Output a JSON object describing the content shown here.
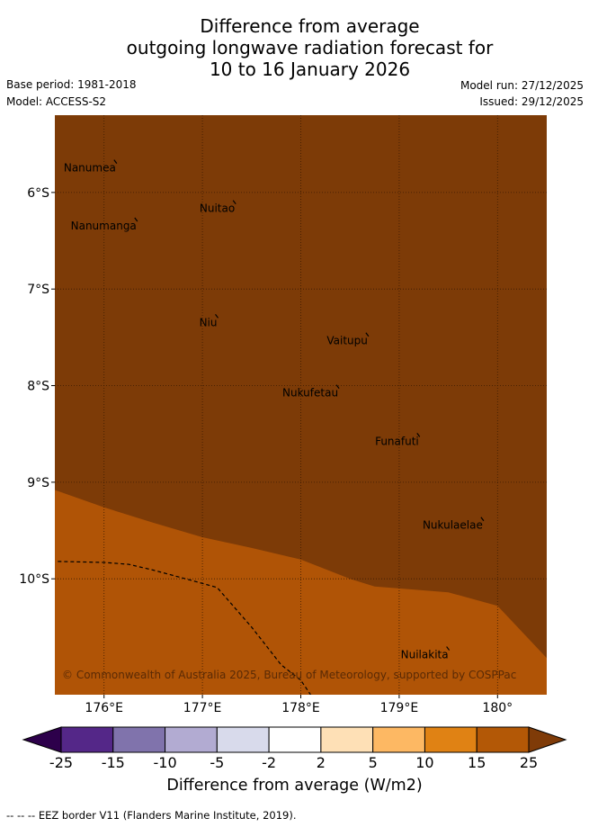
{
  "title": {
    "line1": "Difference from average",
    "line2": "outgoing longwave radiation forecast for",
    "line3": "10 to 16 January 2026"
  },
  "meta": {
    "base_period": "Base period: 1981-2018",
    "model": "Model: ACCESS-S2",
    "model_run": "Model run: 27/12/2025",
    "issued": "Issued: 29/12/2025"
  },
  "map": {
    "lon_range": [
      175.5,
      180.5
    ],
    "lat_range": [
      -11.2,
      -5.2
    ],
    "lon_ticks": [
      176,
      177,
      178,
      179,
      180
    ],
    "lon_tick_labels": [
      "176°E",
      "177°E",
      "178°E",
      "179°E",
      "180°"
    ],
    "lat_ticks": [
      -6,
      -7,
      -8,
      -9,
      -10
    ],
    "lat_tick_labels": [
      "6°S",
      "7°S",
      "8°S",
      "9°S",
      "10°S"
    ],
    "grid": true,
    "fill_colors": {
      "above_25": "#7d3b07",
      "15_to_25": "#b05406"
    },
    "copyright": "© Commonwealth of Australia 2025, Bureau of Meteorology, supported by COSPPac",
    "places": [
      {
        "name": "Nanumea",
        "lon": 176.12,
        "lat": -5.69
      },
      {
        "name": "Nuitao",
        "lon": 177.33,
        "lat": -6.11
      },
      {
        "name": "Nanumanga",
        "lon": 176.33,
        "lat": -6.29
      },
      {
        "name": "Niu",
        "lon": 177.15,
        "lat": -7.29
      },
      {
        "name": "Vaitupu",
        "lon": 178.68,
        "lat": -7.48
      },
      {
        "name": "Nukufetau",
        "lon": 178.38,
        "lat": -8.02
      },
      {
        "name": "Funafuti",
        "lon": 179.2,
        "lat": -8.52
      },
      {
        "name": "Nukulaelae",
        "lon": 179.85,
        "lat": -9.39
      },
      {
        "name": "Nuilakita",
        "lon": 179.5,
        "lat": -10.73
      }
    ],
    "contour_15_boundary": [
      [
        175.5,
        -9.08
      ],
      [
        176.0,
        -9.26
      ],
      [
        176.5,
        -9.42
      ],
      [
        177.0,
        -9.57
      ],
      [
        177.5,
        -9.68
      ],
      [
        178.0,
        -9.8
      ],
      [
        178.5,
        -10.0
      ],
      [
        178.75,
        -10.08
      ],
      [
        179.0,
        -10.1
      ],
      [
        179.5,
        -10.14
      ],
      [
        180.0,
        -10.28
      ],
      [
        180.5,
        -10.82
      ]
    ],
    "eez_border": [
      [
        175.53,
        -9.82
      ],
      [
        176.0,
        -9.83
      ],
      [
        176.25,
        -9.85
      ],
      [
        176.5,
        -9.91
      ],
      [
        176.9,
        -10.02
      ],
      [
        177.15,
        -10.09
      ],
      [
        177.5,
        -10.5
      ],
      [
        177.8,
        -10.89
      ],
      [
        178.0,
        -11.05
      ],
      [
        178.1,
        -11.2
      ]
    ]
  },
  "colorbar": {
    "title": "Difference from average (W/m2)",
    "tick_labels": [
      "-25",
      "-15",
      "-10",
      "-5",
      "-2",
      "2",
      "5",
      "10",
      "15",
      "25"
    ],
    "low_extend_color": "#2d004b",
    "high_extend_color": "#7f3b08",
    "colors": [
      "#542788",
      "#8073ac",
      "#b2abd2",
      "#d8daeb",
      "#ffffff",
      "#fee0b6",
      "#fdb863",
      "#e08214",
      "#b35806"
    ]
  },
  "footer": "--  --  -- EEZ border V11 (Flanders Marine Institute, 2019)."
}
